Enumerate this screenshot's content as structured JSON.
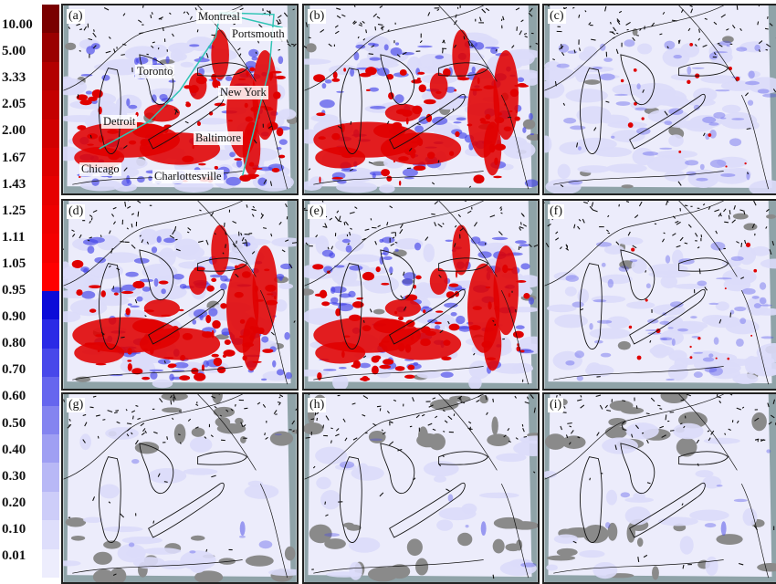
{
  "colorbar": {
    "ticks": [
      "10.00",
      "5.00",
      "3.33",
      "2.05",
      "2.00",
      "1.67",
      "1.43",
      "1.25",
      "1.11",
      "1.05",
      "0.95",
      "0.90",
      "0.80",
      "0.70",
      "0.60",
      "0.50",
      "0.40",
      "0.30",
      "0.20",
      "0.10",
      "0.01"
    ],
    "colors": [
      "#7a0000",
      "#9a0000",
      "#b30000",
      "#c40000",
      "#d10000",
      "#dc0000",
      "#e60000",
      "#ee0000",
      "#f40000",
      "#ff0000",
      "#0b0bd8",
      "#2a2ae6",
      "#4848ea",
      "#6666ee",
      "#8484f0",
      "#9f9ff3",
      "#b8b8f6",
      "#cdcdf9",
      "#dedefb",
      "#ededfd"
    ]
  },
  "panels": [
    {
      "label": "(a)",
      "intensity": "high"
    },
    {
      "label": "(b)",
      "intensity": "high"
    },
    {
      "label": "(c)",
      "intensity": "low"
    },
    {
      "label": "(d)",
      "intensity": "high"
    },
    {
      "label": "(e)",
      "intensity": "high"
    },
    {
      "label": "(f)",
      "intensity": "low"
    },
    {
      "label": "(g)",
      "intensity": "minimal"
    },
    {
      "label": "(h)",
      "intensity": "minimal"
    },
    {
      "label": "(i)",
      "intensity": "minimal"
    }
  ],
  "cities": {
    "montreal": "Montreal",
    "portsmouth": "Portsmouth",
    "toronto": "Toronto",
    "new_york": "New York",
    "detroit": "Detroit",
    "baltimore": "Baltimore",
    "chicago": "Chicago",
    "charlottesville": "Charlottesville"
  },
  "colors": {
    "high": "#e00000",
    "mid": "#4545e8",
    "low": "#dcdcfa",
    "background": "#ececfb",
    "missing": "#8a8a8a",
    "ocean": "#8fa3a8",
    "route": "#2fc4b4"
  }
}
